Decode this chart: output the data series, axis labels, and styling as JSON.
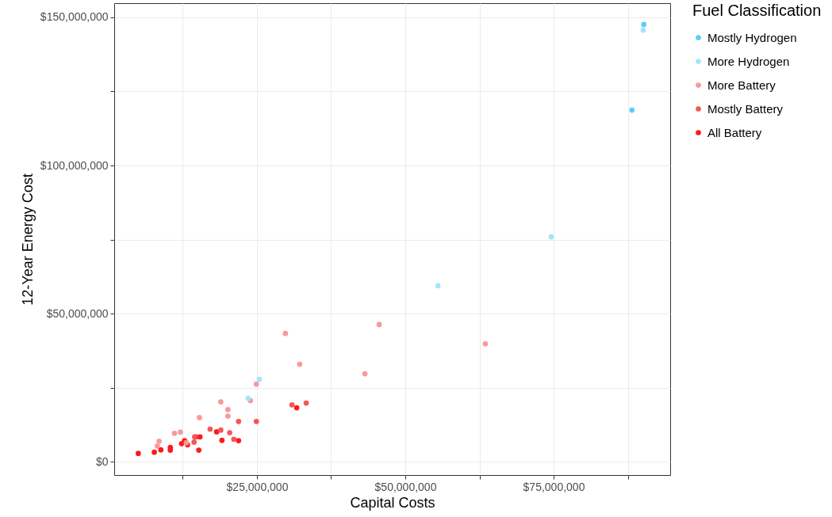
{
  "chart_data": {
    "type": "scatter",
    "xlabel": "Capital Costs",
    "ylabel": "12-Year Energy Cost",
    "legend_title": "Fuel Classification",
    "legend": "right",
    "grid": true,
    "marker": "circle",
    "xlim": [
      940000,
      94650000
    ],
    "ylim": [
      -4500000,
      154800000
    ],
    "xticks": [
      {
        "value": 12500000,
        "label": null
      },
      {
        "value": 25000000,
        "label": "$25,000,000"
      },
      {
        "value": 37500000,
        "label": null
      },
      {
        "value": 50000000,
        "label": "$50,000,000"
      },
      {
        "value": 62500000,
        "label": null
      },
      {
        "value": 75000000,
        "label": "$75,000,000"
      },
      {
        "value": 87500000,
        "label": null
      }
    ],
    "yticks": [
      {
        "value": 0,
        "label": "$0"
      },
      {
        "value": 25000000,
        "label": null
      },
      {
        "value": 50000000,
        "label": "$50,000,000"
      },
      {
        "value": 75000000,
        "label": null
      },
      {
        "value": 100000000,
        "label": "$100,000,000"
      },
      {
        "value": 125000000,
        "label": null
      },
      {
        "value": 150000000,
        "label": "$150,000,000"
      }
    ],
    "series": [
      {
        "name": "Mostly Hydrogen",
        "color": "#5bcefa",
        "x": [
          90200000,
          88200000
        ],
        "values": [
          147600000,
          118700000
        ]
      },
      {
        "name": "More Hydrogen",
        "color": "#a6e3fb",
        "x": [
          90100000,
          74600000,
          55500000,
          25400000,
          23500000
        ],
        "values": [
          145700000,
          75900000,
          59400000,
          27800000,
          21400000
        ]
      },
      {
        "name": "More Battery",
        "color": "#f89a9a",
        "x": [
          29800000,
          45600000,
          63500000,
          43200000,
          32200000,
          24900000,
          23900000,
          18900000,
          20100000,
          20100000,
          15300000,
          11100000,
          12100000,
          8500000,
          8200000,
          13100000
        ],
        "values": [
          43300000,
          46300000,
          39800000,
          29700000,
          32900000,
          26200000,
          20600000,
          20200000,
          17600000,
          15400000,
          14900000,
          9600000,
          10000000,
          6900000,
          5300000,
          6400000
        ]
      },
      {
        "name": "Mostly Battery",
        "color": "#f75555",
        "x": [
          30900000,
          33300000,
          21900000,
          24900000,
          17100000,
          18900000,
          20400000,
          14500000,
          21100000,
          14400000
        ],
        "values": [
          19200000,
          19800000,
          13600000,
          13600000,
          11000000,
          10700000,
          9800000,
          8400000,
          7600000,
          6600000
        ]
      },
      {
        "name": "All Battery",
        "color": "#fd1b1b",
        "x": [
          31700000,
          18200000,
          15400000,
          19100000,
          21900000,
          14700000,
          12800000,
          12300000,
          13300000,
          10400000,
          10400000,
          8800000,
          7700000,
          5000000,
          15200000
        ],
        "values": [
          18200000,
          10100000,
          8400000,
          7200000,
          7100000,
          8400000,
          7100000,
          6100000,
          5700000,
          4800000,
          3900000,
          4000000,
          3200000,
          2800000,
          3900000
        ]
      }
    ]
  }
}
